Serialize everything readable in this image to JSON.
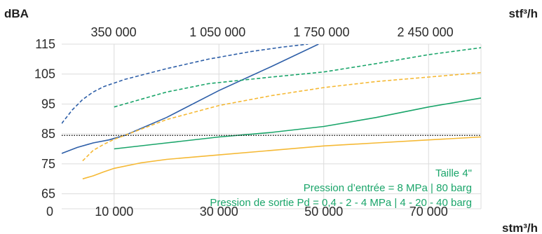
{
  "chart_data": {
    "type": "line",
    "title": "",
    "y_unit": "dBA",
    "x2_unit": "stf³/h",
    "x_unit": "stm³/h",
    "xlim": [
      0,
      80000
    ],
    "ylim": [
      60,
      115
    ],
    "grid": true,
    "y_ticks": [
      {
        "value": 115,
        "label": "115"
      },
      {
        "value": 105,
        "label": "105"
      },
      {
        "value": 95,
        "label": "95"
      },
      {
        "value": 85,
        "label": "85"
      },
      {
        "value": 75,
        "label": "75"
      },
      {
        "value": 65,
        "label": "65"
      }
    ],
    "x_ticks": [
      {
        "value": 0,
        "label": "0"
      },
      {
        "value": 10000,
        "label": "10 000"
      },
      {
        "value": 30000,
        "label": "30 000"
      },
      {
        "value": 50000,
        "label": "50 000"
      },
      {
        "value": 70000,
        "label": "70 000"
      }
    ],
    "x2_ticks": [
      {
        "value": 9911,
        "label": "350 000"
      },
      {
        "value": 29733,
        "label": "1 050 000"
      },
      {
        "value": 49555,
        "label": "1 750 000"
      },
      {
        "value": 69377,
        "label": "2 450 000"
      }
    ],
    "reference_line": {
      "y": 84.5,
      "style": "dotted",
      "color": "#111111"
    },
    "annotations": [
      "Taille 4\"",
      "Pression d’entrée = 8 MPa | 80 barg",
      "Pression de sortie Pd = 0,4 - 2 - 4 MPa | 4 - 20 - 40 barg"
    ],
    "series": [
      {
        "color": "#2e5fa8",
        "dash": "dashed",
        "points": [
          [
            0,
            88.5
          ],
          [
            2000,
            93
          ],
          [
            4000,
            96.5
          ],
          [
            6000,
            99
          ],
          [
            8000,
            100.8
          ],
          [
            12000,
            103.2
          ],
          [
            20000,
            106.8
          ],
          [
            28000,
            110
          ],
          [
            36000,
            112.5
          ],
          [
            42000,
            114
          ],
          [
            47000,
            115
          ]
        ]
      },
      {
        "color": "#2e5fa8",
        "dash": "solid",
        "points": [
          [
            0,
            78.5
          ],
          [
            3000,
            80.5
          ],
          [
            6000,
            82
          ],
          [
            9000,
            83
          ],
          [
            12000,
            84.5
          ],
          [
            20000,
            90.5
          ],
          [
            30000,
            99.5
          ],
          [
            40000,
            107.5
          ],
          [
            49000,
            115
          ]
        ]
      },
      {
        "color": "#1aa56a",
        "dash": "dashed",
        "points": [
          [
            10000,
            94
          ],
          [
            15000,
            96.5
          ],
          [
            20000,
            99
          ],
          [
            28000,
            101.8
          ],
          [
            40000,
            104
          ],
          [
            50000,
            105.7
          ],
          [
            60000,
            108.5
          ],
          [
            70000,
            111.5
          ],
          [
            80000,
            113.8
          ],
          [
            82000,
            114.3
          ]
        ]
      },
      {
        "color": "#1aa56a",
        "dash": "solid",
        "points": [
          [
            10000,
            80
          ],
          [
            20000,
            82
          ],
          [
            30000,
            84
          ],
          [
            40000,
            85.5
          ],
          [
            50000,
            87.5
          ],
          [
            60000,
            90.5
          ],
          [
            70000,
            94
          ],
          [
            80000,
            97
          ]
        ]
      },
      {
        "color": "#f5b935",
        "dash": "dashed",
        "points": [
          [
            4000,
            76
          ],
          [
            6000,
            79.5
          ],
          [
            8000,
            81.5
          ],
          [
            10000,
            83.2
          ],
          [
            15000,
            86.5
          ],
          [
            20000,
            89.8
          ],
          [
            30000,
            94.5
          ],
          [
            40000,
            97.8
          ],
          [
            50000,
            100.5
          ],
          [
            60000,
            102.5
          ],
          [
            70000,
            104
          ],
          [
            80000,
            105.5
          ],
          [
            82000,
            105.7
          ]
        ]
      },
      {
        "color": "#f5b935",
        "dash": "solid",
        "points": [
          [
            4000,
            70
          ],
          [
            6000,
            71
          ],
          [
            8000,
            72.3
          ],
          [
            10000,
            73.5
          ],
          [
            15000,
            75.3
          ],
          [
            20000,
            76.5
          ],
          [
            30000,
            78
          ],
          [
            40000,
            79.5
          ],
          [
            50000,
            81
          ],
          [
            60000,
            82
          ],
          [
            70000,
            83
          ],
          [
            80000,
            84
          ],
          [
            82000,
            84.2
          ]
        ]
      }
    ]
  }
}
